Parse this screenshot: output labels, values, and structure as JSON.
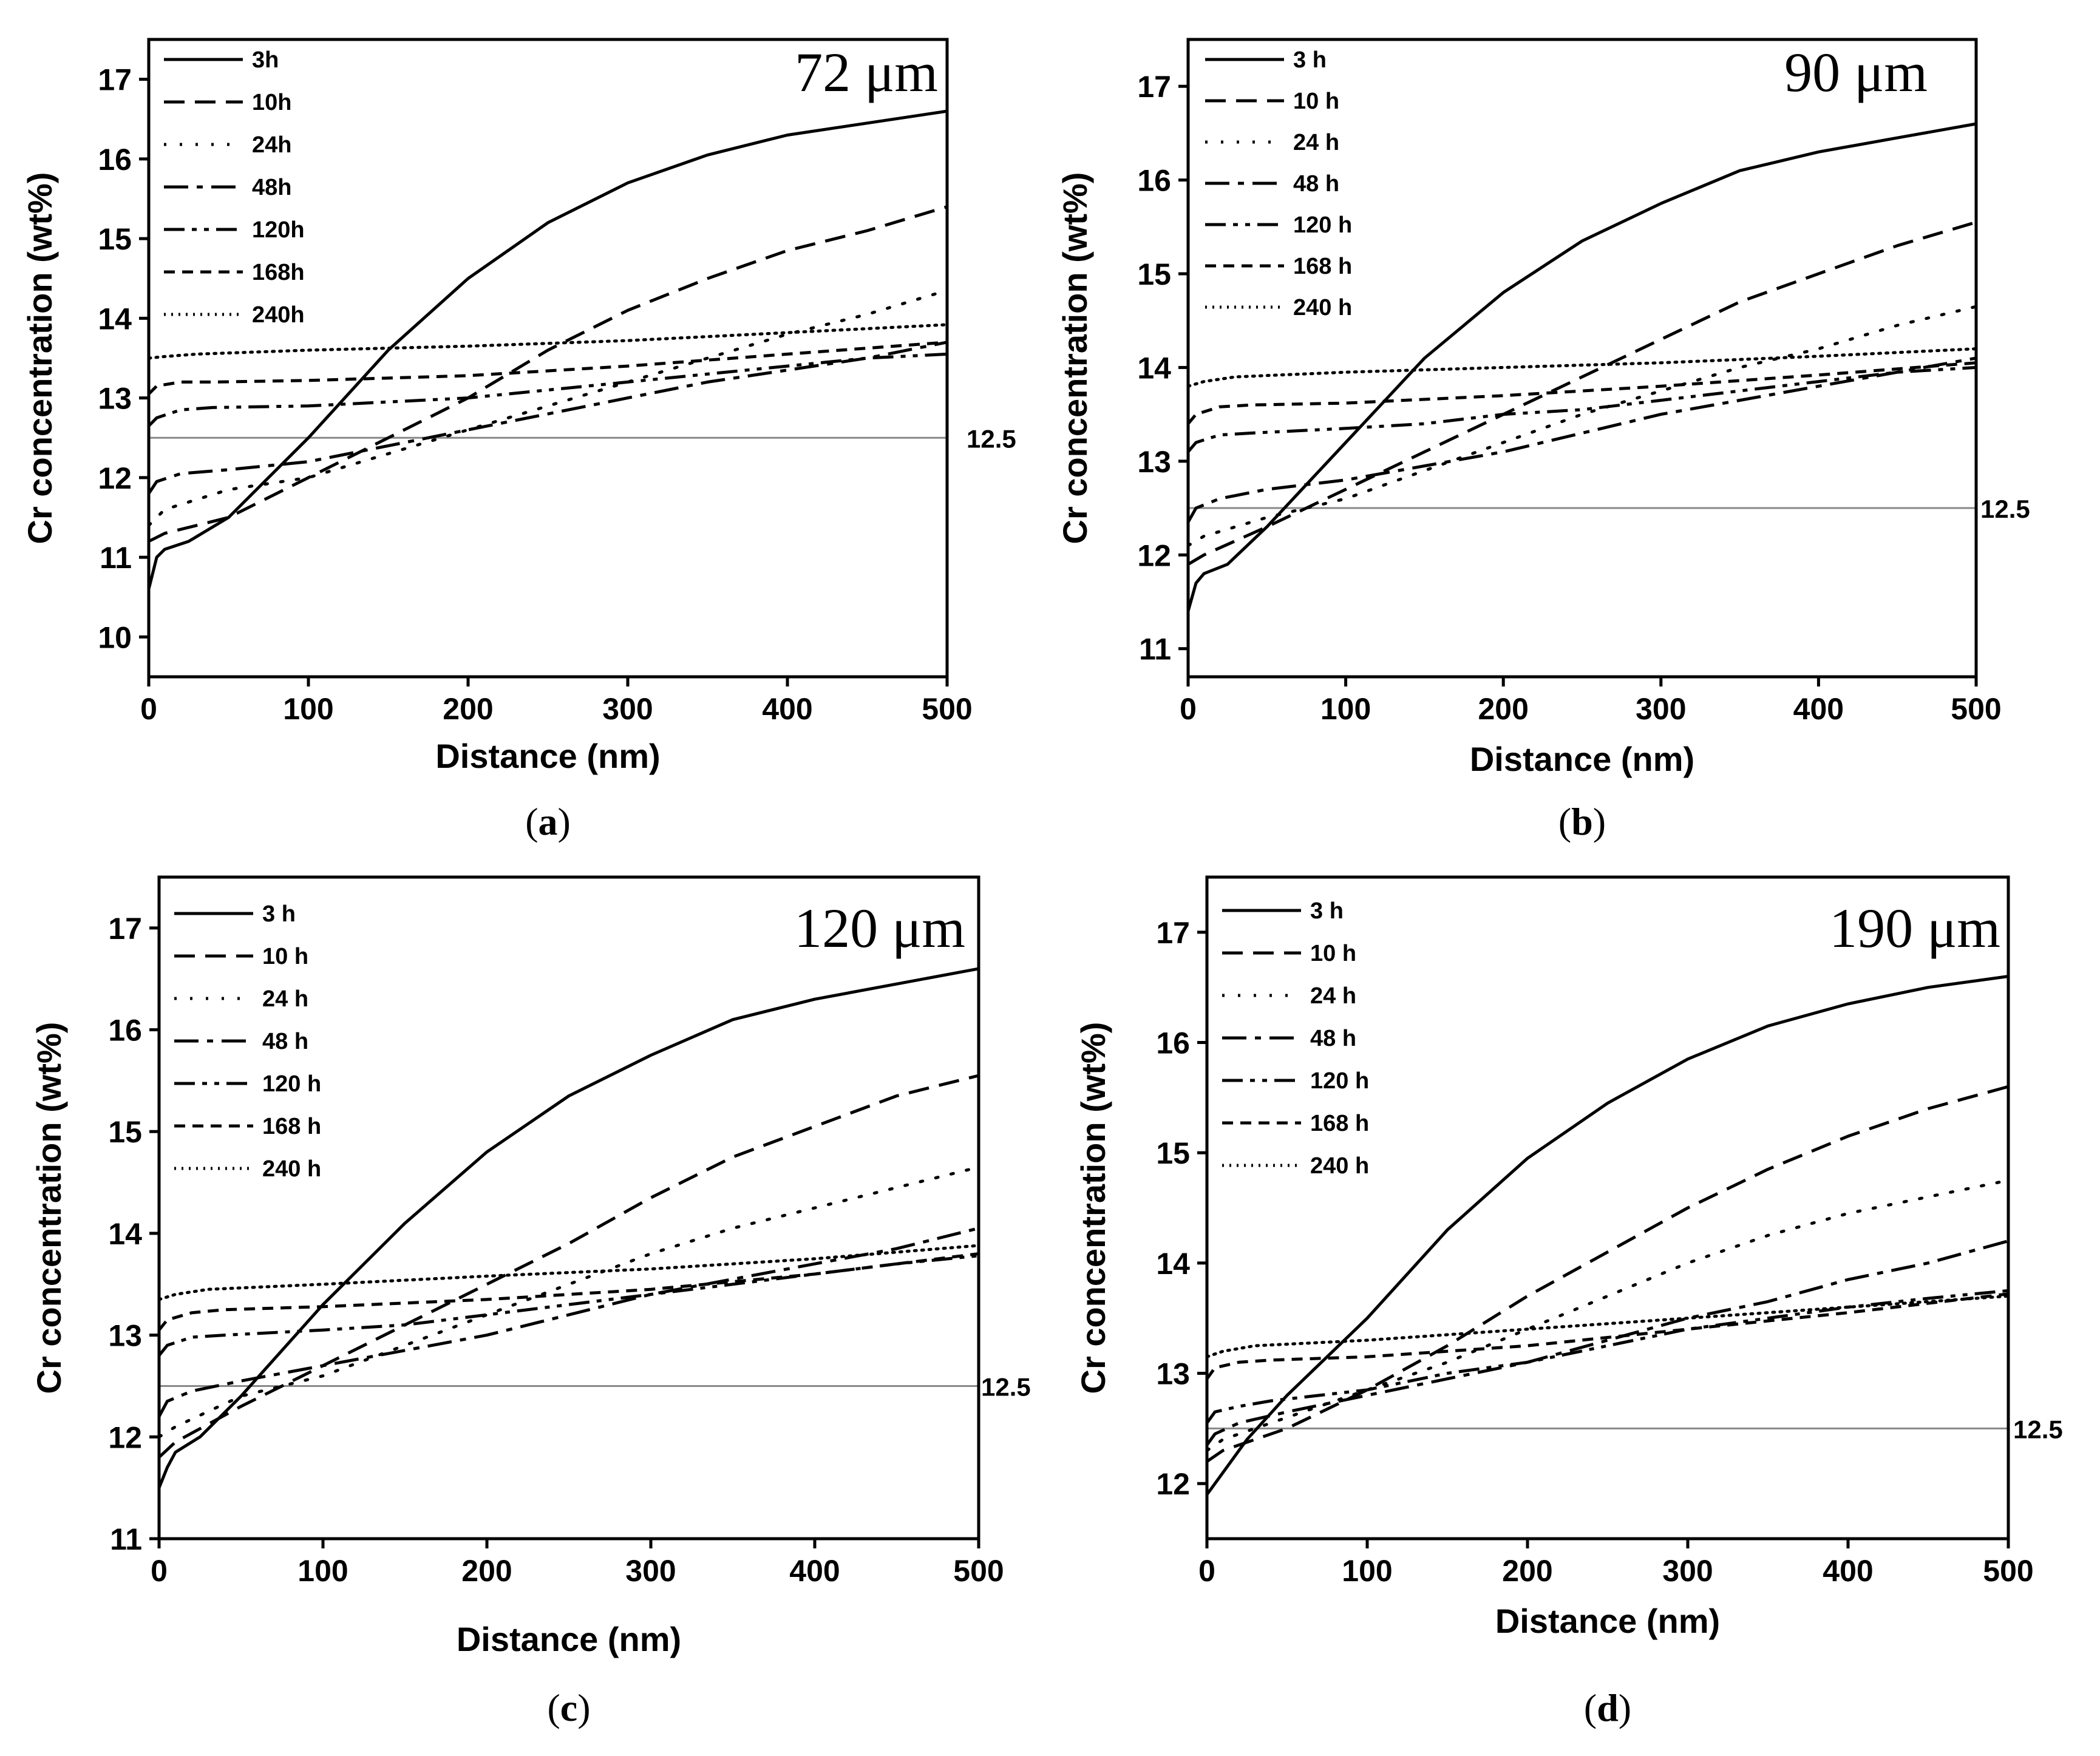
{
  "chart_data": [
    {
      "type": "line",
      "panel_label": "a",
      "size_label": "72 μm",
      "xlabel": "Distance (nm)",
      "ylabel": "Cr concentration (wt%)",
      "xlim": [
        0,
        500
      ],
      "ylim": [
        9.5,
        17.5
      ],
      "xticks": [
        0,
        100,
        200,
        300,
        400,
        500
      ],
      "yticks": [
        10,
        11,
        12,
        13,
        14,
        15,
        16,
        17
      ],
      "reference_line": {
        "value": 12.5,
        "label": "12.5"
      },
      "legend_position": "top-left",
      "series": [
        {
          "name": "3h",
          "style": "solid",
          "x": [
            0,
            5,
            10,
            25,
            50,
            100,
            150,
            200,
            250,
            300,
            350,
            400,
            450,
            500
          ],
          "y": [
            10.6,
            11.0,
            11.1,
            11.2,
            11.5,
            12.5,
            13.6,
            14.5,
            15.2,
            15.7,
            16.05,
            16.3,
            16.45,
            16.6
          ]
        },
        {
          "name": "10h",
          "style": "dash",
          "x": [
            0,
            10,
            50,
            100,
            150,
            200,
            250,
            300,
            350,
            400,
            450,
            500
          ],
          "y": [
            11.2,
            11.3,
            11.5,
            12.0,
            12.5,
            13.0,
            13.6,
            14.1,
            14.5,
            14.85,
            15.1,
            15.4
          ]
        },
        {
          "name": "24h",
          "style": "dot",
          "x": [
            0,
            10,
            50,
            100,
            150,
            200,
            250,
            300,
            350,
            400,
            450,
            500
          ],
          "y": [
            11.4,
            11.6,
            11.85,
            12.0,
            12.3,
            12.6,
            12.9,
            13.2,
            13.5,
            13.8,
            14.05,
            14.35
          ]
        },
        {
          "name": "48h",
          "style": "dashdot",
          "x": [
            0,
            5,
            20,
            50,
            100,
            150,
            200,
            250,
            300,
            350,
            400,
            450,
            500
          ],
          "y": [
            11.8,
            11.95,
            12.05,
            12.1,
            12.2,
            12.4,
            12.6,
            12.8,
            13.0,
            13.2,
            13.35,
            13.5,
            13.7
          ]
        },
        {
          "name": "120h",
          "style": "dashdotdot",
          "x": [
            0,
            5,
            20,
            40,
            100,
            150,
            200,
            250,
            300,
            350,
            400,
            450,
            500
          ],
          "y": [
            12.65,
            12.75,
            12.85,
            12.88,
            12.9,
            12.95,
            13.0,
            13.1,
            13.2,
            13.3,
            13.4,
            13.5,
            13.55
          ]
        },
        {
          "name": "168h",
          "style": "shortdash",
          "x": [
            0,
            5,
            20,
            40,
            100,
            200,
            300,
            400,
            500
          ],
          "y": [
            13.05,
            13.15,
            13.2,
            13.2,
            13.22,
            13.28,
            13.4,
            13.55,
            13.7
          ]
        },
        {
          "name": "240h",
          "style": "densedot",
          "x": [
            0,
            10,
            30,
            100,
            200,
            300,
            400,
            500
          ],
          "y": [
            13.5,
            13.52,
            13.55,
            13.6,
            13.65,
            13.72,
            13.82,
            13.92
          ]
        }
      ]
    },
    {
      "type": "line",
      "panel_label": "b",
      "size_label": "90 μm",
      "xlabel": "Distance (nm)",
      "ylabel": "Cr concentration (wt%)",
      "xlim": [
        0,
        500
      ],
      "ylim": [
        10.7,
        17.5
      ],
      "xticks": [
        0,
        100,
        200,
        300,
        400,
        500
      ],
      "yticks": [
        11,
        12,
        13,
        14,
        15,
        16,
        17
      ],
      "reference_line": {
        "value": 12.5,
        "label": "12.5"
      },
      "legend_position": "top-left",
      "series": [
        {
          "name": "3 h",
          "style": "solid",
          "x": [
            0,
            5,
            10,
            25,
            50,
            100,
            150,
            200,
            250,
            300,
            350,
            400,
            450,
            500
          ],
          "y": [
            11.4,
            11.7,
            11.8,
            11.9,
            12.3,
            13.2,
            14.1,
            14.8,
            15.35,
            15.75,
            16.1,
            16.3,
            16.45,
            16.6
          ]
        },
        {
          "name": "10 h",
          "style": "dash",
          "x": [
            0,
            10,
            50,
            100,
            150,
            200,
            250,
            300,
            350,
            400,
            450,
            500
          ],
          "y": [
            11.9,
            12.0,
            12.3,
            12.7,
            13.1,
            13.5,
            13.9,
            14.3,
            14.7,
            15.0,
            15.3,
            15.55
          ]
        },
        {
          "name": "24 h",
          "style": "dot",
          "x": [
            0,
            10,
            50,
            100,
            150,
            200,
            250,
            300,
            350,
            400,
            450,
            500
          ],
          "y": [
            12.1,
            12.2,
            12.4,
            12.6,
            12.9,
            13.2,
            13.5,
            13.75,
            14.0,
            14.2,
            14.45,
            14.65
          ]
        },
        {
          "name": "48 h",
          "style": "dashdot",
          "x": [
            0,
            5,
            20,
            50,
            100,
            150,
            200,
            250,
            300,
            350,
            400,
            450,
            500
          ],
          "y": [
            12.35,
            12.5,
            12.6,
            12.7,
            12.8,
            12.95,
            13.1,
            13.3,
            13.5,
            13.65,
            13.8,
            13.95,
            14.1
          ]
        },
        {
          "name": "120 h",
          "style": "dashdotdot",
          "x": [
            0,
            5,
            20,
            40,
            100,
            150,
            200,
            250,
            300,
            350,
            400,
            450,
            500
          ],
          "y": [
            13.1,
            13.2,
            13.28,
            13.3,
            13.35,
            13.4,
            13.5,
            13.55,
            13.65,
            13.75,
            13.85,
            13.95,
            14.0
          ]
        },
        {
          "name": "168 h",
          "style": "shortdash",
          "x": [
            0,
            5,
            20,
            40,
            100,
            200,
            300,
            400,
            500
          ],
          "y": [
            13.4,
            13.5,
            13.58,
            13.6,
            13.62,
            13.7,
            13.8,
            13.92,
            14.05
          ]
        },
        {
          "name": "240 h",
          "style": "densedot",
          "x": [
            0,
            10,
            30,
            100,
            200,
            300,
            400,
            500
          ],
          "y": [
            13.8,
            13.85,
            13.9,
            13.95,
            14.0,
            14.05,
            14.12,
            14.2
          ]
        }
      ]
    },
    {
      "type": "line",
      "panel_label": "c",
      "size_label": "120 μm",
      "xlabel": "Distance (nm)",
      "ylabel": "Cr concentration (wt%)",
      "xlim": [
        0,
        500
      ],
      "ylim": [
        11.0,
        17.5
      ],
      "xticks": [
        0,
        100,
        200,
        300,
        400,
        500
      ],
      "yticks": [
        11,
        12,
        13,
        14,
        15,
        16,
        17
      ],
      "reference_line": {
        "value": 12.5,
        "label": "12.5"
      },
      "legend_position": "top-left",
      "series": [
        {
          "name": "3 h",
          "style": "solid",
          "x": [
            0,
            5,
            10,
            25,
            50,
            100,
            150,
            200,
            250,
            300,
            350,
            400,
            450,
            500
          ],
          "y": [
            11.5,
            11.7,
            11.85,
            12.0,
            12.4,
            13.3,
            14.1,
            14.8,
            15.35,
            15.75,
            16.1,
            16.3,
            16.45,
            16.6
          ]
        },
        {
          "name": "10 h",
          "style": "dash",
          "x": [
            0,
            10,
            50,
            100,
            150,
            200,
            250,
            300,
            350,
            400,
            450,
            500
          ],
          "y": [
            11.8,
            11.95,
            12.3,
            12.7,
            13.1,
            13.5,
            13.9,
            14.35,
            14.75,
            15.05,
            15.35,
            15.55
          ]
        },
        {
          "name": "24 h",
          "style": "dot",
          "x": [
            0,
            10,
            50,
            100,
            150,
            200,
            250,
            300,
            350,
            400,
            450,
            500
          ],
          "y": [
            12.0,
            12.1,
            12.4,
            12.6,
            12.9,
            13.2,
            13.5,
            13.8,
            14.05,
            14.25,
            14.45,
            14.65
          ]
        },
        {
          "name": "48 h",
          "style": "dashdot",
          "x": [
            0,
            5,
            20,
            50,
            100,
            150,
            200,
            250,
            300,
            350,
            400,
            450,
            500
          ],
          "y": [
            12.2,
            12.35,
            12.45,
            12.55,
            12.7,
            12.85,
            13.0,
            13.2,
            13.4,
            13.55,
            13.7,
            13.85,
            14.05
          ]
        },
        {
          "name": "120 h",
          "style": "dashdotdot",
          "x": [
            0,
            5,
            20,
            40,
            100,
            150,
            200,
            250,
            300,
            350,
            400,
            450,
            500
          ],
          "y": [
            12.8,
            12.9,
            12.98,
            13.0,
            13.05,
            13.1,
            13.2,
            13.3,
            13.4,
            13.5,
            13.6,
            13.7,
            13.78
          ]
        },
        {
          "name": "168 h",
          "style": "shortdash",
          "x": [
            0,
            5,
            20,
            40,
            100,
            200,
            300,
            400,
            500
          ],
          "y": [
            13.05,
            13.15,
            13.22,
            13.25,
            13.28,
            13.35,
            13.45,
            13.6,
            13.8
          ]
        },
        {
          "name": "240 h",
          "style": "densedot",
          "x": [
            0,
            10,
            30,
            100,
            200,
            300,
            400,
            500
          ],
          "y": [
            13.35,
            13.4,
            13.45,
            13.5,
            13.58,
            13.65,
            13.75,
            13.88
          ]
        }
      ]
    },
    {
      "type": "line",
      "panel_label": "d",
      "size_label": "190 μm",
      "xlabel": "Distance (nm)",
      "ylabel": "Cr concentration (wt%)",
      "xlim": [
        0,
        500
      ],
      "ylim": [
        11.5,
        17.5
      ],
      "xticks": [
        0,
        100,
        200,
        300,
        400,
        500
      ],
      "yticks": [
        12,
        13,
        14,
        15,
        16,
        17
      ],
      "reference_line": {
        "value": 12.5,
        "label": "12.5"
      },
      "legend_position": "top-left",
      "series": [
        {
          "name": "3 h",
          "style": "solid",
          "x": [
            0,
            5,
            10,
            25,
            50,
            100,
            150,
            200,
            250,
            300,
            350,
            400,
            450,
            500
          ],
          "y": [
            11.9,
            12.0,
            12.1,
            12.4,
            12.8,
            13.5,
            14.3,
            14.95,
            15.45,
            15.85,
            16.15,
            16.35,
            16.5,
            16.6
          ]
        },
        {
          "name": "10 h",
          "style": "dash",
          "x": [
            0,
            10,
            50,
            100,
            150,
            200,
            250,
            300,
            350,
            400,
            450,
            500
          ],
          "y": [
            12.2,
            12.3,
            12.5,
            12.85,
            13.25,
            13.7,
            14.1,
            14.5,
            14.85,
            15.15,
            15.4,
            15.6
          ]
        },
        {
          "name": "24 h",
          "style": "dot",
          "x": [
            0,
            10,
            50,
            100,
            150,
            200,
            250,
            300,
            350,
            400,
            450,
            500
          ],
          "y": [
            12.3,
            12.4,
            12.6,
            12.85,
            13.1,
            13.4,
            13.7,
            14.0,
            14.25,
            14.45,
            14.6,
            14.75
          ]
        },
        {
          "name": "48 h",
          "style": "dashdot",
          "x": [
            0,
            5,
            20,
            50,
            100,
            150,
            200,
            250,
            300,
            350,
            400,
            450,
            500
          ],
          "y": [
            12.35,
            12.45,
            12.55,
            12.65,
            12.8,
            12.95,
            13.1,
            13.3,
            13.5,
            13.65,
            13.85,
            14.0,
            14.2
          ]
        },
        {
          "name": "120 h",
          "style": "dashdotdot",
          "x": [
            0,
            5,
            20,
            40,
            100,
            150,
            200,
            250,
            300,
            350,
            400,
            450,
            500
          ],
          "y": [
            12.55,
            12.65,
            12.7,
            12.75,
            12.85,
            13.0,
            13.1,
            13.25,
            13.4,
            13.5,
            13.6,
            13.68,
            13.75
          ]
        },
        {
          "name": "168 h",
          "style": "shortdash",
          "x": [
            0,
            5,
            20,
            40,
            100,
            200,
            300,
            400,
            500
          ],
          "y": [
            12.95,
            13.05,
            13.1,
            13.12,
            13.15,
            13.25,
            13.4,
            13.55,
            13.72
          ]
        },
        {
          "name": "240 h",
          "style": "densedot",
          "x": [
            0,
            10,
            30,
            100,
            200,
            300,
            400,
            500
          ],
          "y": [
            13.15,
            13.2,
            13.25,
            13.3,
            13.4,
            13.5,
            13.6,
            13.7
          ]
        }
      ]
    }
  ]
}
